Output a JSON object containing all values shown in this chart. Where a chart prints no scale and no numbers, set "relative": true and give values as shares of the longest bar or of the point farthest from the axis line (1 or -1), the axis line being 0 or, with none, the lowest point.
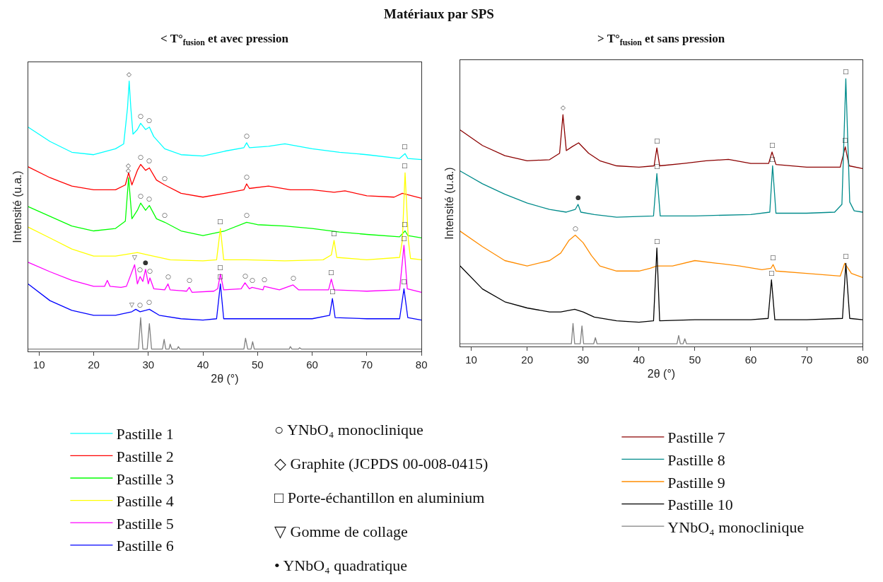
{
  "chart_data": [
    {
      "type": "line",
      "title": "Matériaux par SPS",
      "subtitle": "< T°$_{fusion}$ et avec pression",
      "xlabel": "2θ (°)",
      "ylabel": "Intensité (u.a.)",
      "relative": true,
      "xlim": [
        8,
        80
      ],
      "xticks": [
        10,
        20,
        30,
        40,
        50,
        60,
        70,
        80
      ],
      "tick_labels": "x",
      "legend": "bottom",
      "series": [
        {
          "name": "Pastille 1",
          "color": "#00ffff",
          "x": [
            8,
            12,
            16,
            20,
            24,
            25.5,
            26.2,
            26.5,
            26.8,
            27.2,
            28,
            28.6,
            29.5,
            30.2,
            31,
            33,
            36,
            40,
            44,
            47.5,
            48,
            48.5,
            52,
            55,
            60,
            65,
            70,
            76,
            77,
            77.5,
            80
          ],
          "values": [
            0.83,
            0.777,
            0.737,
            0.728,
            0.75,
            0.768,
            0.902,
            1.0,
            0.902,
            0.804,
            0.821,
            0.844,
            0.821,
            0.83,
            0.795,
            0.75,
            0.728,
            0.723,
            0.741,
            0.754,
            0.772,
            0.754,
            0.759,
            0.768,
            0.75,
            0.737,
            0.728,
            0.714,
            0.732,
            0.714,
            0.71
          ]
        },
        {
          "name": "Pastille 2",
          "color": "#ff0000",
          "x": [
            8,
            12,
            16,
            20,
            24,
            25.8,
            26.4,
            27,
            28,
            28.6,
            29.5,
            30.2,
            31.5,
            33,
            36,
            40,
            44,
            47.5,
            48,
            48.5,
            52,
            56,
            60,
            64,
            66,
            70,
            75,
            76.5,
            77.5,
            80
          ],
          "values": [
            0.683,
            0.643,
            0.612,
            0.598,
            0.598,
            0.616,
            0.661,
            0.616,
            0.67,
            0.692,
            0.67,
            0.679,
            0.634,
            0.616,
            0.585,
            0.571,
            0.585,
            0.598,
            0.62,
            0.603,
            0.612,
            0.598,
            0.598,
            0.589,
            0.594,
            0.576,
            0.571,
            0.585,
            0.58,
            0.567
          ]
        },
        {
          "name": "Pastille 3",
          "color": "#00ff00",
          "x": [
            8,
            12,
            16,
            20,
            24,
            25.8,
            26.4,
            27,
            28,
            28.6,
            29.5,
            30.2,
            31.5,
            33,
            36,
            40,
            44,
            48,
            50,
            55,
            60,
            65,
            70,
            76,
            77,
            77.5,
            80
          ],
          "values": [
            0.536,
            0.5,
            0.464,
            0.446,
            0.455,
            0.482,
            0.643,
            0.491,
            0.522,
            0.549,
            0.522,
            0.54,
            0.491,
            0.478,
            0.446,
            0.429,
            0.446,
            0.478,
            0.469,
            0.464,
            0.455,
            0.442,
            0.433,
            0.424,
            0.446,
            0.429,
            0.42
          ]
        },
        {
          "name": "Pastille 4",
          "color": "#ffff00",
          "x": [
            8,
            12,
            16,
            20,
            24,
            28,
            30,
            34,
            40,
            42.5,
            43.2,
            43.8,
            48,
            55,
            62,
            63.5,
            64,
            64.5,
            70,
            76,
            76.5,
            77,
            77.6,
            78,
            80
          ],
          "values": [
            0.46,
            0.42,
            0.379,
            0.353,
            0.353,
            0.366,
            0.357,
            0.339,
            0.335,
            0.339,
            0.455,
            0.339,
            0.339,
            0.335,
            0.339,
            0.357,
            0.411,
            0.348,
            0.339,
            0.348,
            0.411,
            0.661,
            0.411,
            0.344,
            0.339
          ]
        },
        {
          "name": "Pastille 5",
          "color": "#ff00ff",
          "x": [
            8,
            12,
            16,
            20,
            22,
            22.5,
            23,
            25,
            26,
            27.5,
            28,
            28.5,
            29,
            29.5,
            30,
            30.3,
            31,
            33,
            33.6,
            34,
            37,
            37.5,
            38,
            42,
            42.7,
            43.2,
            43.8,
            47,
            47.7,
            48.5,
            49,
            51,
            51.2,
            54,
            56.5,
            57.5,
            60,
            63,
            63.5,
            64,
            70,
            76,
            76.8,
            77.4,
            80
          ],
          "values": [
            0.33,
            0.295,
            0.263,
            0.241,
            0.241,
            0.263,
            0.241,
            0.237,
            0.241,
            0.321,
            0.25,
            0.277,
            0.259,
            0.304,
            0.25,
            0.272,
            0.232,
            0.228,
            0.25,
            0.228,
            0.223,
            0.237,
            0.219,
            0.223,
            0.232,
            0.286,
            0.228,
            0.232,
            0.254,
            0.232,
            0.237,
            0.228,
            0.241,
            0.228,
            0.246,
            0.228,
            0.228,
            0.228,
            0.268,
            0.228,
            0.223,
            0.228,
            0.393,
            0.232,
            0.219
          ]
        },
        {
          "name": "Pastille 6",
          "color": "#0000ff",
          "x": [
            8,
            12,
            16,
            20,
            24,
            27,
            27.7,
            28.5,
            29.5,
            30.2,
            32,
            36,
            40,
            42.5,
            43.2,
            43.8,
            50,
            60,
            63.2,
            63.7,
            64.2,
            70,
            76,
            76.8,
            77.5,
            80
          ],
          "values": [
            0.25,
            0.188,
            0.152,
            0.134,
            0.134,
            0.147,
            0.156,
            0.147,
            0.152,
            0.156,
            0.134,
            0.121,
            0.116,
            0.121,
            0.25,
            0.121,
            0.121,
            0.121,
            0.134,
            0.196,
            0.125,
            0.121,
            0.121,
            0.232,
            0.125,
            0.116
          ]
        },
        {
          "color": "#808080",
          "x": [
            8,
            28.2,
            28.6,
            29.0,
            29.8,
            30.2,
            30.6,
            32.6,
            32.9,
            33.2,
            33.8,
            34,
            34.3,
            35.3,
            35.5,
            35.8,
            47.5,
            47.8,
            48.2,
            48.8,
            49.1,
            49.4,
            55.8,
            56,
            56.3,
            57.5,
            57.7,
            58,
            80
          ],
          "values": [
            0.009,
            0.009,
            0.125,
            0.009,
            0.009,
            0.103,
            0.009,
            0.009,
            0.045,
            0.009,
            0.009,
            0.027,
            0.009,
            0.009,
            0.018,
            0.009,
            0.009,
            0.049,
            0.009,
            0.009,
            0.036,
            0.009,
            0.009,
            0.018,
            0.009,
            0.009,
            0.014,
            0.009,
            0.009
          ]
        }
      ],
      "annotations": [
        {
          "text": "◇",
          "x": 26.5,
          "y": 1.0
        },
        {
          "text": "○",
          "x": 28.6,
          "y": 0.844
        },
        {
          "text": "○",
          "x": 30.2,
          "y": 0.83
        },
        {
          "text": "○",
          "x": 48,
          "y": 0.772
        },
        {
          "text": "□",
          "x": 77,
          "y": 0.732
        },
        {
          "text": "◇",
          "x": 26.4,
          "y": 0.661
        },
        {
          "text": "○",
          "x": 28.6,
          "y": 0.692
        },
        {
          "text": "○",
          "x": 30.2,
          "y": 0.679
        },
        {
          "text": "○",
          "x": 33,
          "y": 0.616
        },
        {
          "text": "○",
          "x": 48,
          "y": 0.62
        },
        {
          "text": "◇",
          "x": 26.4,
          "y": 0.643
        },
        {
          "text": "○",
          "x": 28.6,
          "y": 0.549
        },
        {
          "text": "○",
          "x": 30.2,
          "y": 0.54
        },
        {
          "text": "○",
          "x": 33,
          "y": 0.478
        },
        {
          "text": "○",
          "x": 48,
          "y": 0.478
        },
        {
          "text": "□",
          "x": 77,
          "y": 0.446
        },
        {
          "text": "□",
          "x": 43.2,
          "y": 0.455
        },
        {
          "text": "□",
          "x": 64,
          "y": 0.411
        },
        {
          "text": "□",
          "x": 77,
          "y": 0.661
        },
        {
          "text": "▽",
          "x": 27.5,
          "y": 0.321
        },
        {
          "text": "●",
          "x": 29.5,
          "y": 0.304
        },
        {
          "text": "○",
          "x": 28.5,
          "y": 0.277
        },
        {
          "text": "○",
          "x": 30.3,
          "y": 0.272
        },
        {
          "text": "○",
          "x": 33.6,
          "y": 0.25
        },
        {
          "text": "○",
          "x": 37.5,
          "y": 0.237
        },
        {
          "text": "□",
          "x": 43.2,
          "y": 0.286
        },
        {
          "text": "○",
          "x": 47.7,
          "y": 0.254
        },
        {
          "text": "○",
          "x": 49,
          "y": 0.237
        },
        {
          "text": "○",
          "x": 51.2,
          "y": 0.241
        },
        {
          "text": "○",
          "x": 56.5,
          "y": 0.246
        },
        {
          "text": "□",
          "x": 63.5,
          "y": 0.268
        },
        {
          "text": "□",
          "x": 76.8,
          "y": 0.393
        },
        {
          "text": "▽",
          "x": 27,
          "y": 0.147
        },
        {
          "text": "○",
          "x": 28.5,
          "y": 0.147
        },
        {
          "text": "○",
          "x": 30.2,
          "y": 0.156
        },
        {
          "text": "□",
          "x": 43.2,
          "y": 0.25
        },
        {
          "text": "□",
          "x": 63.7,
          "y": 0.196
        },
        {
          "text": "□",
          "x": 76.8,
          "y": 0.232
        },
        "○ YNbO₄ monoclinique",
        "◇ Graphite (JCPDS 00-008-0415)",
        "□ Porte-échantillon en aluminium",
        "▽ Gomme de collage",
        "• YNbO₄ quadratique"
      ]
    },
    {
      "type": "line",
      "subtitle": "> T°$_{fusion}$ et sans pression",
      "xlabel": "2θ (°)",
      "ylabel": "Intensité (u.a.)",
      "relative": true,
      "xlim": [
        8,
        80
      ],
      "xticks": [
        10,
        20,
        30,
        40,
        50,
        60,
        70,
        80
      ],
      "tick_labels": "x",
      "legend": "bottom",
      "series": [
        {
          "name": "Pastille 7",
          "color": "#8b0000",
          "x": [
            8,
            12,
            16,
            20,
            24,
            25.8,
            26.4,
            27,
            28,
            29.2,
            31,
            33,
            36,
            40,
            42.7,
            43.2,
            43.7,
            48,
            52,
            56,
            60,
            63.2,
            63.8,
            64.5,
            70,
            76,
            76.9,
            77.6,
            80
          ],
          "values": [
            0.809,
            0.751,
            0.713,
            0.694,
            0.698,
            0.722,
            0.866,
            0.732,
            0.746,
            0.761,
            0.722,
            0.694,
            0.675,
            0.67,
            0.675,
            0.742,
            0.675,
            0.684,
            0.694,
            0.699,
            0.684,
            0.684,
            0.727,
            0.68,
            0.67,
            0.67,
            0.746,
            0.675,
            0.665
          ]
        },
        {
          "name": "Pastille 8",
          "color": "#008b8b",
          "x": [
            8,
            12,
            16,
            20,
            24,
            27,
            28.6,
            29.1,
            29.6,
            32,
            36,
            42.6,
            43.2,
            43.8,
            50,
            60,
            63.4,
            63.9,
            64.5,
            70,
            75,
            76.3,
            77,
            77.7,
            78.5,
            80
          ],
          "values": [
            0.656,
            0.608,
            0.569,
            0.536,
            0.512,
            0.502,
            0.512,
            0.531,
            0.502,
            0.493,
            0.483,
            0.488,
            0.646,
            0.488,
            0.488,
            0.493,
            0.502,
            0.675,
            0.498,
            0.498,
            0.502,
            0.531,
            1.0,
            0.54,
            0.507,
            0.502
          ]
        },
        {
          "name": "Pastille 9",
          "color": "#ff8c00",
          "x": [
            8,
            12,
            16,
            20,
            24,
            26,
            27.5,
            28.6,
            30,
            31.5,
            33,
            36,
            40,
            42,
            43.2,
            46,
            50,
            54,
            58,
            62,
            63.6,
            64,
            64.5,
            70,
            76,
            76.8,
            78,
            80
          ],
          "values": [
            0.431,
            0.373,
            0.321,
            0.301,
            0.321,
            0.349,
            0.397,
            0.416,
            0.388,
            0.34,
            0.301,
            0.282,
            0.282,
            0.292,
            0.301,
            0.301,
            0.321,
            0.311,
            0.301,
            0.287,
            0.292,
            0.306,
            0.282,
            0.273,
            0.263,
            0.311,
            0.273,
            0.258
          ]
        },
        {
          "name": "Pastille 10",
          "color": "#000000",
          "x": [
            8,
            12,
            16,
            20,
            24,
            26,
            28.5,
            30,
            32,
            36,
            40,
            42.6,
            43.2,
            43.7,
            50,
            60,
            63.1,
            63.7,
            64.3,
            70,
            76.4,
            77,
            77.7,
            80
          ],
          "values": [
            0.301,
            0.215,
            0.167,
            0.144,
            0.129,
            0.129,
            0.139,
            0.129,
            0.11,
            0.096,
            0.091,
            0.096,
            0.368,
            0.096,
            0.1,
            0.1,
            0.105,
            0.249,
            0.1,
            0.1,
            0.105,
            0.311,
            0.105,
            0.1
          ]
        },
        {
          "name": "YNbO₄ monoclinique",
          "color": "#808080",
          "x": [
            8,
            27.9,
            28.2,
            28.5,
            29.5,
            29.8,
            30.1,
            31.9,
            32.2,
            32.5,
            46.8,
            47.1,
            47.4,
            47.9,
            48.2,
            48.5,
            80
          ],
          "values": [
            0.01,
            0.01,
            0.086,
            0.01,
            0.01,
            0.077,
            0.01,
            0.01,
            0.033,
            0.01,
            0.01,
            0.041,
            0.01,
            0.01,
            0.029,
            0.01,
            0.01
          ]
        }
      ],
      "annotations": [
        {
          "text": "◇",
          "x": 26.4,
          "y": 0.866
        },
        {
          "text": "□",
          "x": 43.2,
          "y": 0.742
        },
        {
          "text": "□",
          "x": 63.8,
          "y": 0.727
        },
        {
          "text": "□",
          "x": 76.9,
          "y": 0.746
        },
        {
          "text": "□",
          "x": 43.2,
          "y": 0.646
        },
        {
          "text": "□",
          "x": 63.9,
          "y": 0.675
        },
        {
          "text": "□",
          "x": 77,
          "y": 1.0
        },
        {
          "text": "●",
          "x": 29.1,
          "y": 0.531
        },
        {
          "text": "○",
          "x": 28.6,
          "y": 0.416
        },
        {
          "text": "□",
          "x": 64,
          "y": 0.306
        },
        {
          "text": "□",
          "x": 43.2,
          "y": 0.368
        },
        {
          "text": "□",
          "x": 63.7,
          "y": 0.249
        },
        {
          "text": "□",
          "x": 77,
          "y": 0.311
        }
      ]
    }
  ]
}
